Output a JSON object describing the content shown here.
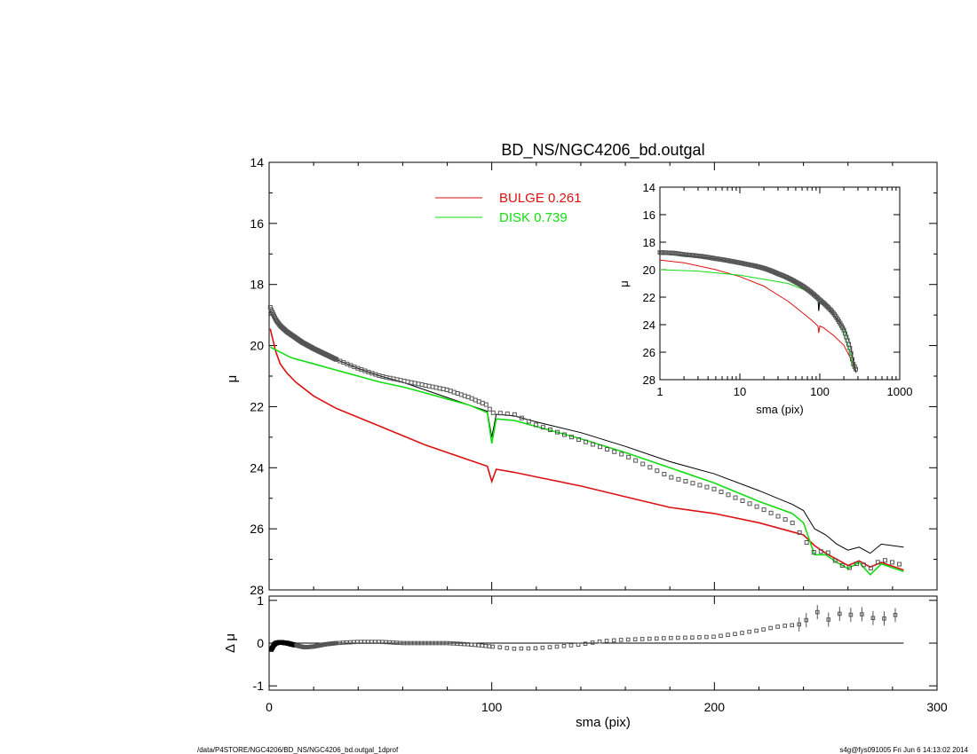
{
  "footer": {
    "left": "/data/P4STORE/NGC4206/BD_NS/NGC4206_bd.outgal_1dprof",
    "right": "s4g@fys091005  Fri Jun  6 14:13:02 2014"
  },
  "colors": {
    "bulge": "#dd1111",
    "disk": "#11dd11",
    "total": "#000000",
    "data": "#555555"
  },
  "chart_data": [
    {
      "type": "line",
      "title": "BD_NS/NGC4206_bd.outgal",
      "xlabel": "",
      "ylabel": "μ",
      "xlim": [
        0,
        300
      ],
      "ylim": [
        28,
        14
      ],
      "xticks": [
        0,
        100,
        200,
        300
      ],
      "yticks": [
        14,
        16,
        18,
        20,
        22,
        24,
        26,
        28
      ],
      "legend": {
        "placement": "top-center",
        "entries": [
          {
            "label": "BULGE",
            "value": "0.261",
            "color": "#dd1111"
          },
          {
            "label": "DISK",
            "value": "0.739",
            "color": "#11dd11"
          }
        ]
      },
      "series": [
        {
          "name": "BULGE",
          "x": [
            0.5,
            1,
            2,
            3,
            5,
            8,
            12,
            20,
            30,
            40,
            50,
            60,
            70,
            80,
            90,
            98,
            100,
            102,
            110,
            120,
            140,
            160,
            180,
            200,
            220,
            240,
            245,
            250,
            255,
            260,
            265,
            270,
            275,
            285
          ],
          "y": [
            19.45,
            19.6,
            19.9,
            20.2,
            20.6,
            20.9,
            21.2,
            21.65,
            22.05,
            22.35,
            22.65,
            22.95,
            23.25,
            23.5,
            23.75,
            23.95,
            24.45,
            24.05,
            24.15,
            24.3,
            24.6,
            24.95,
            25.3,
            25.5,
            25.8,
            26.2,
            26.55,
            26.8,
            27.0,
            27.2,
            27.05,
            27.25,
            27.1,
            27.35
          ]
        },
        {
          "name": "DISK",
          "x": [
            0.5,
            10,
            20,
            30,
            40,
            50,
            60,
            70,
            80,
            90,
            98,
            100,
            102,
            110,
            120,
            140,
            160,
            180,
            200,
            220,
            235,
            240,
            245,
            250,
            255,
            260,
            265,
            270,
            275,
            285
          ],
          "y": [
            20.05,
            20.4,
            20.6,
            20.8,
            21.0,
            21.2,
            21.35,
            21.55,
            21.75,
            21.95,
            22.2,
            23.2,
            22.4,
            22.45,
            22.65,
            23.05,
            23.5,
            24.0,
            24.5,
            25.1,
            25.5,
            25.8,
            26.85,
            26.85,
            27.1,
            27.3,
            27.1,
            27.5,
            27.15,
            27.4
          ]
        },
        {
          "name": "",
          "x": [
            0.5,
            1,
            2,
            3,
            5,
            8,
            10,
            15,
            20,
            30,
            40,
            50,
            60,
            70,
            80,
            90,
            98,
            100,
            102,
            110,
            120,
            140,
            160,
            180,
            200,
            220,
            235,
            240,
            245,
            250,
            255,
            260,
            265,
            270,
            275,
            285
          ],
          "y": [
            18.85,
            18.9,
            19.05,
            19.2,
            19.4,
            19.6,
            19.7,
            19.9,
            20.1,
            20.45,
            20.75,
            21.0,
            21.2,
            21.45,
            21.7,
            21.95,
            22.15,
            23.0,
            22.25,
            22.3,
            22.5,
            22.85,
            23.3,
            23.8,
            24.2,
            24.75,
            25.2,
            25.4,
            26.0,
            26.2,
            26.5,
            26.7,
            26.6,
            26.8,
            26.5,
            26.6
          ]
        },
        {
          "name": "",
          "x": [
            0.5,
            1,
            2,
            3,
            5,
            8,
            10,
            15,
            20,
            30,
            40,
            50,
            60,
            70,
            80,
            90,
            98,
            100,
            102,
            110,
            120,
            140,
            160,
            180,
            200,
            220,
            235,
            240,
            245,
            250,
            255,
            260,
            265,
            270,
            275,
            285
          ],
          "y": [
            18.75,
            18.85,
            19.0,
            19.15,
            19.35,
            19.55,
            19.65,
            19.9,
            20.1,
            20.45,
            20.75,
            21.0,
            21.15,
            21.3,
            21.45,
            21.7,
            21.95,
            22.2,
            22.2,
            22.25,
            22.6,
            23.1,
            23.6,
            24.3,
            24.7,
            25.3,
            25.8,
            26.3,
            26.8,
            26.7,
            27.1,
            27.3,
            27.1,
            27.3,
            27.0,
            27.2
          ]
        }
      ]
    },
    {
      "type": "scatter",
      "xlabel": "sma (pix)",
      "ylabel": "Δ μ",
      "xlim": [
        0,
        300
      ],
      "ylim": [
        -1.1,
        1.1
      ],
      "xticks": [
        0,
        100,
        200,
        300
      ],
      "yticks": [
        1,
        0,
        -1
      ],
      "series": [
        {
          "name": "",
          "x": [
            1,
            2,
            3,
            5,
            8,
            12,
            16,
            20,
            25,
            30,
            40,
            50,
            60,
            70,
            80,
            90,
            100,
            110,
            120,
            130,
            140,
            150,
            160,
            170,
            180,
            190,
            200,
            210,
            220,
            230,
            235,
            240,
            245,
            250,
            255,
            260,
            265,
            270,
            275,
            280,
            285
          ],
          "y": [
            -0.15,
            -0.05,
            0.0,
            0.02,
            0.0,
            -0.05,
            -0.1,
            -0.08,
            -0.03,
            0.0,
            0.03,
            0.03,
            0.0,
            0.0,
            0.0,
            -0.03,
            -0.08,
            -0.13,
            -0.12,
            -0.08,
            -0.03,
            0.05,
            0.08,
            0.1,
            0.12,
            0.13,
            0.15,
            0.22,
            0.3,
            0.4,
            0.42,
            0.45,
            0.8,
            0.5,
            0.7,
            0.65,
            0.7,
            0.6,
            0.55,
            0.65,
            0.68
          ]
        }
      ]
    },
    {
      "type": "line",
      "xlabel": "sma (pix)",
      "ylabel": "μ",
      "xscale": "log",
      "xlim": [
        1,
        1000
      ],
      "ylim": [
        28,
        14
      ],
      "xticks": [
        1,
        10,
        100,
        1000
      ],
      "yticks": [
        14,
        16,
        18,
        20,
        22,
        24,
        26,
        28
      ],
      "series": [
        {
          "name": "BULGE",
          "x": [
            1,
            2,
            5,
            10,
            20,
            40,
            60,
            80,
            95,
            97,
            100,
            110,
            150,
            200,
            250,
            285
          ],
          "y": [
            19.3,
            19.5,
            20.0,
            20.5,
            21.2,
            22.3,
            23.1,
            23.7,
            24.1,
            24.6,
            24.1,
            24.2,
            24.8,
            25.5,
            26.6,
            27.4
          ]
        },
        {
          "name": "DISK",
          "x": [
            1,
            3,
            10,
            20,
            40,
            60,
            80,
            95,
            97,
            100,
            120,
            150,
            200,
            240,
            260,
            285
          ],
          "y": [
            20.0,
            20.1,
            20.4,
            20.7,
            21.0,
            21.4,
            21.7,
            22.1,
            23.0,
            22.3,
            22.7,
            23.3,
            24.5,
            26.0,
            27.0,
            27.4
          ]
        },
        {
          "name": "",
          "x": [
            1,
            2,
            5,
            10,
            15,
            20,
            30,
            50,
            80,
            95,
            97,
            100,
            120,
            150,
            200,
            240,
            260,
            285
          ],
          "y": [
            18.85,
            18.95,
            19.2,
            19.5,
            19.7,
            19.9,
            20.3,
            20.9,
            21.7,
            22.1,
            23.0,
            22.3,
            22.5,
            23.3,
            24.2,
            25.4,
            26.5,
            27.5
          ]
        },
        {
          "name": "",
          "x": [
            1,
            1.5,
            2,
            3,
            5,
            8,
            12,
            16,
            20,
            30,
            50,
            80,
            100,
            120,
            150,
            200,
            240,
            260,
            285
          ],
          "y": [
            18.75,
            18.8,
            18.9,
            19.0,
            19.2,
            19.4,
            19.6,
            19.75,
            19.9,
            20.3,
            20.9,
            21.7,
            22.2,
            22.6,
            23.2,
            24.4,
            25.8,
            26.8,
            27.3
          ]
        }
      ]
    }
  ]
}
